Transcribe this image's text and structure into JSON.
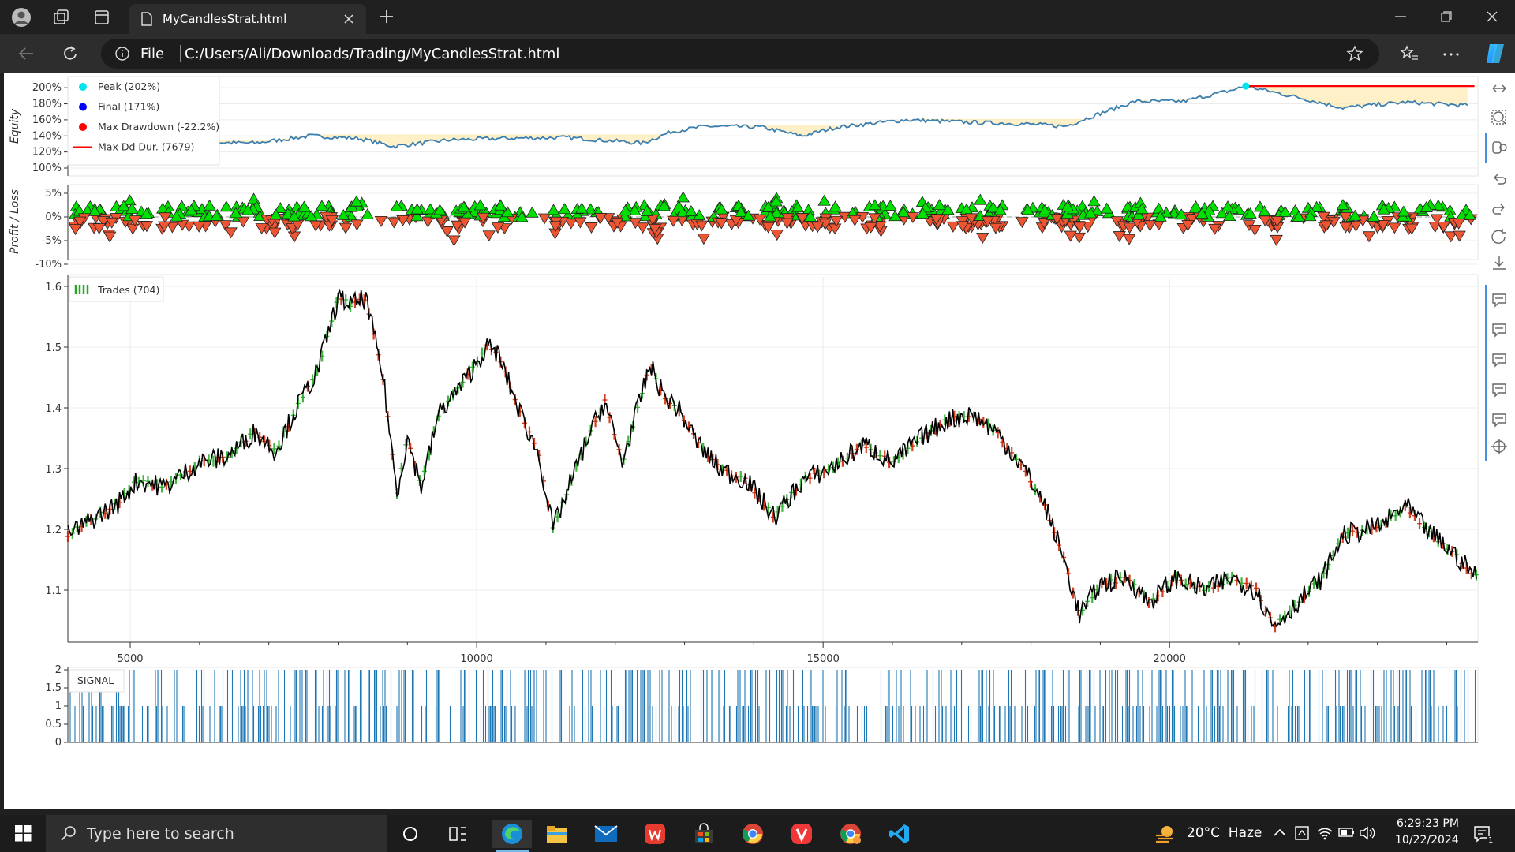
{
  "browser": {
    "tab_title": "MyCandlesStrat.html",
    "address_prefix": "File",
    "url": "C:/Users/Ali/Downloads/Trading/MyCandlesStrat.html"
  },
  "taskbar": {
    "search_placeholder": "Type here to search",
    "weather": "20°C  Haze",
    "time": "6:29:23 PM",
    "date": "10/22/2024",
    "notification_count": "1"
  },
  "chart_data": [
    {
      "type": "line",
      "panel": "equity",
      "ylabel": "Equity",
      "yticks": [
        "200%",
        "180%",
        "160%",
        "140%",
        "120%",
        "100%"
      ],
      "ylim": [
        100,
        210
      ],
      "legend": [
        {
          "label": "Peak (202%)",
          "color": "#00e5ee"
        },
        {
          "label": "Final (171%)",
          "color": "#0000ff"
        },
        {
          "label": "Max Drawdown (-22.2%)",
          "color": "#ff0000"
        },
        {
          "label": "Max Dd Dur. (7679)",
          "color": "#ff0000"
        }
      ],
      "x": [
        4300,
        5500,
        6800,
        7600,
        8300,
        8800,
        9600,
        10400,
        11300,
        12400,
        12800,
        13300,
        14100,
        14700,
        15200,
        16200,
        17100,
        17900,
        18500,
        18900,
        19500,
        20200,
        20900,
        21100,
        21900,
        22500,
        23400,
        24300
      ],
      "values": [
        133,
        133,
        131,
        140,
        137,
        127,
        135,
        137,
        138,
        131,
        145,
        152,
        151,
        140,
        151,
        160,
        157,
        155,
        152,
        165,
        183,
        183,
        197,
        202,
        187,
        175,
        182,
        178
      ],
      "peak": {
        "x": 21100,
        "value": 202
      },
      "max_dd_duration_line": {
        "x_start": 21100,
        "x_end": 24400,
        "value": 202
      }
    },
    {
      "type": "scatter",
      "panel": "profit_loss",
      "ylabel": "Profit / Loss",
      "yticks": [
        "5%",
        "0%",
        "-5%",
        "-10%"
      ],
      "ylim": [
        -11,
        7
      ],
      "series": [
        {
          "name": "winning trades",
          "color": "#00e000",
          "marker": "triangle"
        },
        {
          "name": "losing trades",
          "color": "#ee5533",
          "marker": "triangle"
        }
      ]
    },
    {
      "type": "line",
      "panel": "ohlc",
      "yticks": [
        "1.6",
        "1.5",
        "1.4",
        "1.3",
        "1.2",
        "1.1"
      ],
      "xticks": [
        "5000",
        "10000",
        "15000",
        "20000"
      ],
      "ylim": [
        1.02,
        1.62
      ],
      "xlim": [
        4100,
        24450
      ],
      "legend": [
        {
          "label": "Trades (704)",
          "color": "#22aa22"
        }
      ],
      "x": [
        4100,
        4500,
        4800,
        5100,
        5500,
        6000,
        6400,
        6800,
        7100,
        7400,
        7700,
        8000,
        8200,
        8400,
        8650,
        8850,
        9000,
        9200,
        9450,
        9800,
        10150,
        10300,
        10600,
        10900,
        11100,
        11300,
        11600,
        11850,
        12100,
        12300,
        12500,
        12700,
        12900,
        13200,
        13500,
        13900,
        14300,
        14700,
        15100,
        15600,
        16000,
        16400,
        16800,
        17150,
        17500,
        17900,
        18200,
        18450,
        18700,
        19000,
        19400,
        19700,
        20100,
        20500,
        20900,
        21250,
        21500,
        21850,
        22200,
        22500,
        22850,
        23100,
        23400,
        23700,
        24100,
        24450
      ],
      "values": [
        1.19,
        1.22,
        1.24,
        1.28,
        1.27,
        1.31,
        1.32,
        1.36,
        1.33,
        1.4,
        1.46,
        1.58,
        1.57,
        1.58,
        1.45,
        1.26,
        1.35,
        1.27,
        1.39,
        1.44,
        1.5,
        1.49,
        1.4,
        1.32,
        1.2,
        1.26,
        1.35,
        1.41,
        1.31,
        1.39,
        1.47,
        1.42,
        1.4,
        1.34,
        1.3,
        1.28,
        1.22,
        1.28,
        1.3,
        1.34,
        1.31,
        1.35,
        1.38,
        1.39,
        1.36,
        1.3,
        1.24,
        1.16,
        1.06,
        1.11,
        1.12,
        1.08,
        1.12,
        1.1,
        1.12,
        1.1,
        1.04,
        1.08,
        1.12,
        1.19,
        1.2,
        1.21,
        1.24,
        1.2,
        1.16,
        1.12
      ],
      "trade_color_up": "#22aa22",
      "trade_color_down": "#cc2200"
    },
    {
      "type": "bar",
      "panel": "signal",
      "legend": [
        {
          "label": "SIGNAL",
          "color": "#1f77b4"
        }
      ],
      "yticks": [
        "2",
        "1.5",
        "1",
        "0.5",
        "0"
      ],
      "ylim": [
        0,
        2
      ],
      "color": "#1f77b4"
    }
  ]
}
